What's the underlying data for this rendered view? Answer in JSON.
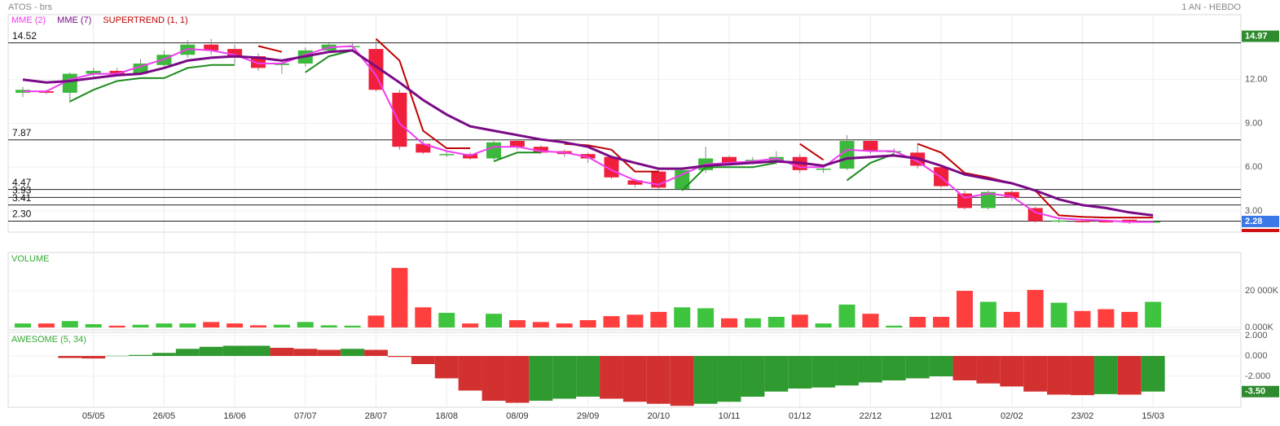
{
  "header": {
    "title": "ATOS - brs",
    "period": "1 AN - HEBDO"
  },
  "chart_data": [
    {
      "type": "candlestick",
      "open": [
        11.1,
        11.2,
        11.1,
        12.4,
        12.6,
        12.4,
        13.0,
        13.7,
        14.4,
        14.1,
        13.6,
        13.0,
        13.1,
        14.0,
        14.3,
        14.1,
        11.1,
        7.6,
        6.9,
        6.9,
        6.6,
        7.8,
        7.4,
        7.1,
        6.9,
        6.7,
        5.1,
        5.7,
        4.5,
        5.8,
        6.7,
        6.4,
        6.4,
        6.7,
        5.9,
        5.9,
        7.8,
        7.1,
        7.0,
        6.0,
        4.2,
        3.2,
        4.3,
        3.2,
        2.3,
        2.32,
        2.3,
        2.4,
        2.22
      ],
      "high": [
        11.5,
        11.3,
        12.5,
        12.8,
        12.8,
        13.4,
        14.0,
        14.7,
        14.8,
        14.4,
        13.8,
        13.3,
        14.2,
        14.6,
        14.6,
        14.7,
        11.3,
        7.9,
        7.1,
        7.0,
        7.8,
        7.9,
        7.5,
        7.2,
        7.0,
        6.8,
        5.2,
        5.8,
        6.0,
        7.4,
        6.8,
        6.7,
        7.1,
        6.9,
        6.0,
        8.2,
        7.9,
        7.3,
        7.6,
        6.1,
        4.4,
        4.5,
        4.4,
        3.3,
        2.5,
        2.4,
        2.38,
        2.4,
        2.32
      ],
      "low": [
        10.8,
        11.0,
        10.4,
        12.2,
        12.3,
        12.3,
        12.9,
        13.5,
        13.7,
        13.1,
        12.6,
        12.4,
        12.9,
        13.9,
        14.0,
        11.2,
        7.2,
        6.9,
        6.7,
        6.5,
        6.5,
        7.2,
        6.9,
        6.7,
        6.3,
        5.2,
        4.6,
        4.4,
        4.4,
        5.6,
        6.1,
        6.2,
        6.2,
        5.6,
        5.6,
        5.8,
        6.9,
        6.9,
        5.9,
        4.6,
        3.1,
        3.1,
        3.7,
        2.2,
        2.2,
        2.2,
        2.2,
        2.1,
        2.18
      ],
      "close": [
        11.3,
        11.1,
        12.4,
        12.6,
        12.4,
        13.1,
        13.7,
        14.4,
        14.0,
        13.5,
        12.8,
        13.1,
        14.0,
        14.4,
        14.3,
        11.3,
        7.4,
        7.0,
        6.9,
        6.6,
        7.7,
        7.4,
        7.0,
        6.9,
        6.6,
        5.3,
        4.8,
        4.6,
        5.8,
        6.6,
        6.3,
        6.5,
        6.7,
        5.8,
        5.9,
        7.8,
        7.1,
        7.1,
        6.1,
        4.7,
        3.2,
        4.3,
        3.9,
        2.3,
        2.35,
        2.3,
        2.28,
        2.2,
        2.28
      ],
      "up_color": "#3cb93c",
      "down_color": "#f0203c",
      "series": [
        {
          "name": "MME (2)",
          "color": "#f03cf0",
          "values": [
            11.2,
            11.2,
            12.0,
            12.4,
            12.4,
            12.9,
            13.4,
            14.1,
            14.0,
            13.7,
            13.1,
            13.1,
            13.7,
            14.2,
            14.3,
            12.3,
            9.0,
            7.6,
            7.1,
            6.8,
            7.4,
            7.4,
            7.1,
            7.0,
            6.7,
            5.8,
            5.1,
            4.8,
            5.5,
            6.2,
            6.3,
            6.4,
            6.6,
            6.0,
            6.0,
            7.2,
            7.1,
            7.1,
            6.4,
            5.3,
            3.9,
            4.2,
            4.0,
            2.9,
            2.5,
            2.4,
            2.35,
            2.25,
            2.25
          ]
        },
        {
          "name": "MME (7)",
          "color": "#7a0a86",
          "values": [
            12.0,
            11.8,
            11.9,
            12.1,
            12.3,
            12.4,
            12.8,
            13.3,
            13.5,
            13.6,
            13.5,
            13.3,
            13.6,
            13.9,
            14.0,
            12.9,
            11.8,
            10.6,
            9.6,
            8.8,
            8.5,
            8.2,
            7.9,
            7.7,
            7.4,
            6.7,
            6.3,
            5.9,
            5.9,
            6.1,
            6.2,
            6.3,
            6.4,
            6.3,
            6.1,
            6.6,
            6.7,
            6.8,
            6.6,
            6.1,
            5.5,
            5.2,
            4.9,
            4.4,
            3.8,
            3.4,
            3.2,
            2.9,
            2.7
          ]
        }
      ],
      "supertrend": {
        "name": "SUPERTREND (1, 1)",
        "color": "#c00000",
        "up_color": "#1e8c1e",
        "values_down": [
          null,
          null,
          null,
          null,
          null,
          null,
          null,
          null,
          null,
          null,
          14.3,
          13.9,
          null,
          null,
          null,
          14.8,
          13.3,
          8.5,
          7.3,
          7.3,
          null,
          null,
          null,
          7.6,
          7.5,
          7.2,
          5.7,
          5.7,
          null,
          null,
          null,
          null,
          null,
          7.6,
          6.5,
          null,
          null,
          null,
          7.6,
          7.0,
          5.6,
          5.3,
          4.9,
          4.4,
          2.7,
          2.6,
          2.55,
          2.55,
          2.55
        ],
        "values_up": [
          null,
          null,
          10.5,
          11.3,
          11.9,
          12.1,
          12.1,
          12.8,
          13.0,
          13.0,
          null,
          null,
          12.5,
          13.6,
          14.0,
          null,
          null,
          null,
          null,
          null,
          6.4,
          7.0,
          7.0,
          null,
          null,
          null,
          null,
          null,
          4.4,
          6.0,
          6.0,
          6.0,
          6.3,
          null,
          null,
          5.1,
          6.3,
          6.9,
          null,
          null,
          null,
          null,
          null,
          null,
          null,
          null,
          null,
          null,
          null
        ]
      },
      "levels": [
        14.52,
        7.87,
        4.47,
        3.93,
        3.41,
        {
          "value": 2.3,
          "label": "2.30"
        }
      ],
      "markers": [
        {
          "value": 14.97,
          "color": "#2e8b2e"
        },
        {
          "value": 2.28,
          "color": "#3b78e7"
        }
      ],
      "ylim": [
        1.55,
        16.45
      ],
      "yticks": [
        {
          "value": 12,
          "label": "12.00"
        },
        {
          "value": 9,
          "label": "9.00"
        },
        {
          "value": 6,
          "label": "6.00"
        },
        {
          "value": 3,
          "label": "3.00"
        }
      ]
    },
    {
      "type": "bar",
      "title": "VOLUME",
      "values": [
        2200,
        2200,
        3500,
        1800,
        1000,
        1500,
        2200,
        2200,
        3000,
        2200,
        1200,
        1500,
        3000,
        1200,
        1000,
        6500,
        32500,
        11000,
        8000,
        2200,
        7500,
        4000,
        3000,
        2200,
        4000,
        6200,
        7000,
        8500,
        11000,
        10500,
        5000,
        5000,
        5800,
        7000,
        2200,
        12500,
        7500,
        1000,
        5800,
        5800,
        20000,
        14000,
        8500,
        20500,
        13500,
        9000,
        10000,
        8500,
        14000
      ],
      "up_color": "#3ec43e",
      "down_color": "#ff3e3e",
      "ylim": [
        -1300,
        40900
      ],
      "yticks": [
        {
          "value": 0,
          "label": "0.000K"
        },
        {
          "value": 20000,
          "label": "20 000K"
        }
      ]
    },
    {
      "type": "bar",
      "title": "AWESOME (5, 34)",
      "categories": [
        null,
        null,
        null,
        "05/05",
        null,
        null,
        "26/05",
        null,
        null,
        "16/06",
        null,
        null,
        "07/07",
        null,
        null,
        "28/07",
        null,
        null,
        "18/08",
        null,
        null,
        "08/09",
        null,
        null,
        "29/09",
        null,
        null,
        "20/10",
        null,
        null,
        "10/11",
        null,
        null,
        "01/12",
        null,
        null,
        "22/12",
        null,
        null,
        "12/01",
        null,
        null,
        "02/02",
        null,
        null,
        "23/02",
        null,
        null,
        "15/03"
      ],
      "values": [
        null,
        null,
        -0.2,
        -0.25,
        0.02,
        0.1,
        0.3,
        0.7,
        0.9,
        1.0,
        1.0,
        0.8,
        0.7,
        0.6,
        0.7,
        0.6,
        -0.1,
        -0.8,
        -2.2,
        -3.4,
        -4.4,
        -4.6,
        -4.4,
        -4.2,
        -4.0,
        -4.2,
        -4.5,
        -4.7,
        -4.9,
        -4.7,
        -4.5,
        -4.0,
        -3.5,
        -3.2,
        -3.1,
        -2.9,
        -2.6,
        -2.4,
        -2.2,
        -2.0,
        -2.4,
        -2.7,
        -3.0,
        -3.5,
        -3.8,
        -3.85,
        -3.75,
        -3.8,
        -3.5
      ],
      "up_color": "#2f9a2f",
      "down_color": "#d33030",
      "markers": [
        {
          "value": -3.5,
          "label": "-3.50",
          "color": "#2e8b2e"
        }
      ],
      "ylim": [
        -5.04,
        2.32
      ],
      "yticks": [
        {
          "value": 2,
          "label": "2.000"
        },
        {
          "value": 0,
          "label": "0.000"
        },
        {
          "value": -2,
          "label": "-2.000"
        }
      ]
    }
  ]
}
